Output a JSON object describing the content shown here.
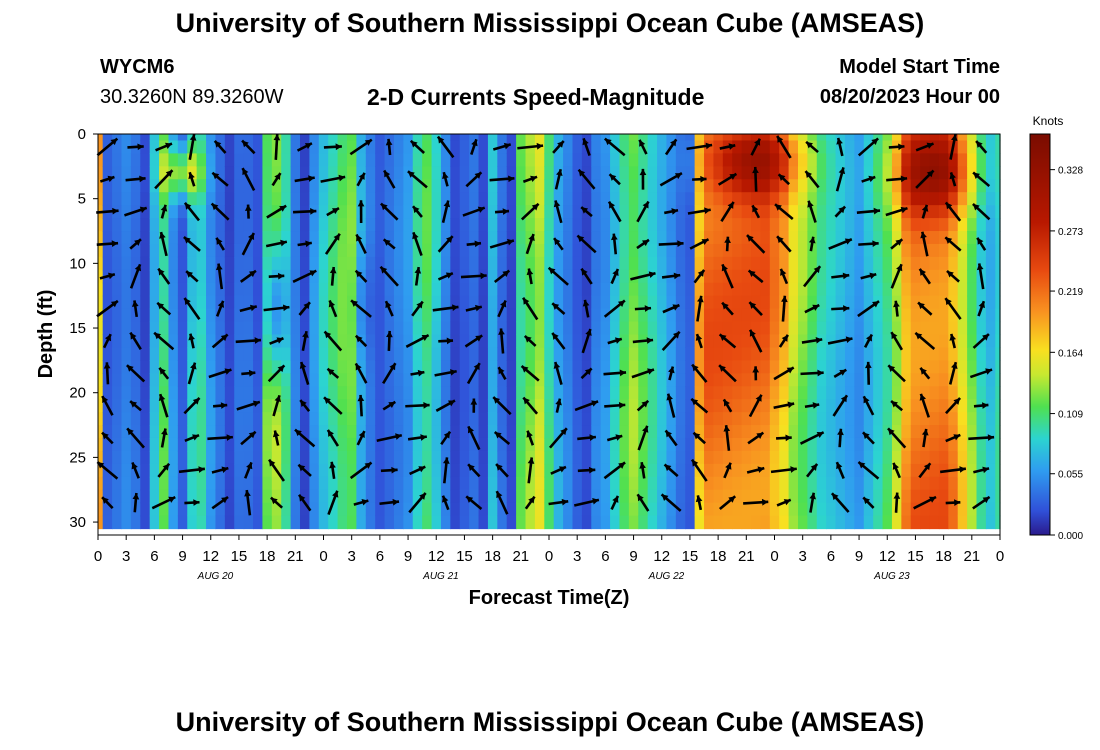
{
  "header": {
    "title": "University of Southern Mississippi Ocean Cube (AMSEAS)",
    "station": "WYCM6",
    "coords": "30.3260N  89.3260W",
    "subtitle": "2-D Currents Speed-Magnitude",
    "start_label": "Model Start Time",
    "start_value": "08/20/2023 Hour 00",
    "footer_title": "University of Southern Mississippi Ocean Cube (AMSEAS)"
  },
  "chart_data": {
    "type": "heatmap",
    "xlabel": "Forecast Time(Z)",
    "ylabel": "Depth (ft)",
    "x_ticks": [
      "0",
      "3",
      "6",
      "9",
      "12",
      "15",
      "18",
      "21",
      "0",
      "3",
      "6",
      "9",
      "12",
      "15",
      "18",
      "21",
      "0",
      "3",
      "6",
      "9",
      "12",
      "15",
      "18",
      "21",
      "0",
      "3",
      "6",
      "9",
      "12",
      "15",
      "18",
      "21",
      "0"
    ],
    "day_labels": [
      "AUG 20",
      "AUG 21",
      "AUG 22",
      "AUG 23"
    ],
    "y_ticks": [
      "0",
      "5",
      "10",
      "15",
      "20",
      "25",
      "30"
    ],
    "ylim": [
      0,
      31
    ],
    "xlim_hours": [
      0,
      96
    ],
    "colorbar": {
      "unit": "Knots",
      "ticks": [
        "0.328",
        "0.273",
        "0.219",
        "0.164",
        "0.109",
        "0.055",
        "0.000"
      ],
      "range": [
        0,
        0.36
      ]
    },
    "speed_by_hour": [
      0.2,
      0.03,
      0.04,
      0.05,
      0.04,
      0.02,
      0.08,
      0.12,
      0.06,
      0.03,
      0.09,
      0.1,
      0.06,
      0.04,
      0.02,
      0.04,
      0.04,
      0.03,
      0.14,
      0.16,
      0.12,
      0.05,
      0.02,
      0.06,
      0.09,
      0.11,
      0.13,
      0.14,
      0.08,
      0.05,
      0.03,
      0.04,
      0.05,
      0.06,
      0.1,
      0.12,
      0.09,
      0.05,
      0.02,
      0.03,
      0.04,
      0.02,
      0.08,
      0.04,
      0.02,
      0.12,
      0.14,
      0.16,
      0.11,
      0.07,
      0.05,
      0.03,
      0.02,
      0.05,
      0.06,
      0.09,
      0.12,
      0.14,
      0.12,
      0.1,
      0.08,
      0.06,
      0.04,
      0.03,
      0.2,
      0.24,
      0.24,
      0.24,
      0.24,
      0.24,
      0.24,
      0.24,
      0.22,
      0.2,
      0.16,
      0.14,
      0.12,
      0.1,
      0.09,
      0.08,
      0.07,
      0.06,
      0.08,
      0.1,
      0.12,
      0.16,
      0.22,
      0.24,
      0.24,
      0.24,
      0.24,
      0.22,
      0.18,
      0.14,
      0.1,
      0.08,
      0.1
    ],
    "features": [
      {
        "hour": 19,
        "depth": 14,
        "spread_h": 1.2,
        "spread_d": 6,
        "value": -0.1
      },
      {
        "hour": 28,
        "depth": 13,
        "spread_h": 1.5,
        "spread_d": 5,
        "value": -0.03
      },
      {
        "hour": 9,
        "depth": 3,
        "spread_h": 2,
        "spread_d": 2,
        "value": 0.1
      },
      {
        "hour": 70,
        "depth": 2,
        "spread_h": 5,
        "spread_d": 3,
        "value": 0.12
      },
      {
        "hour": 89,
        "depth": 3,
        "spread_h": 4,
        "spread_d": 3,
        "value": 0.1
      }
    ]
  }
}
